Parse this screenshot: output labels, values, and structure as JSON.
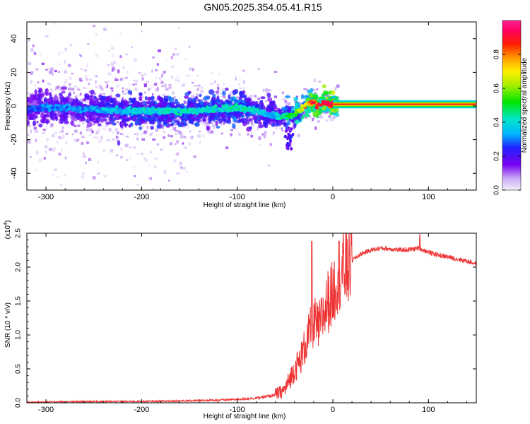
{
  "title": "GN05.2025.354.05.41.R15",
  "chart_data": [
    {
      "type": "heatmap",
      "xlabel": "Height of straight line (km)",
      "ylabel": "Frequency (Hz)",
      "xlim": [
        -320,
        150
      ],
      "ylim": [
        -50,
        50
      ],
      "xticks": [
        -300,
        -200,
        -100,
        0,
        100
      ],
      "xtick_labels": [
        "-300",
        "-200",
        "-100",
        "0",
        "100"
      ],
      "yticks": [
        -40,
        -20,
        0,
        20,
        40
      ],
      "ytick_labels": [
        "-40",
        "-20",
        "0",
        "20",
        "40"
      ],
      "colorbar": {
        "label": "Normalized spectral amplitude",
        "range": [
          0,
          1
        ],
        "ticks": [
          0.0,
          0.2,
          0.4,
          0.6,
          0.8
        ],
        "tick_labels": [
          "0.0",
          "0.2",
          "0.4",
          "0.6",
          "0.8"
        ]
      },
      "ridge": {
        "x": [
          -320,
          -300,
          -280,
          -260,
          -240,
          -220,
          -200,
          -180,
          -160,
          -140,
          -120,
          -100,
          -90,
          -80,
          -70,
          -60,
          -55,
          -50,
          -45,
          -40,
          -35,
          -30,
          -25,
          -20,
          -15,
          -10,
          -5,
          0,
          150
        ],
        "freq": [
          -2,
          -1,
          -1,
          -2,
          -2,
          -3,
          -3,
          -3,
          -3,
          -3,
          -2,
          -1,
          -2,
          -3,
          -5,
          -6,
          -7,
          -6,
          -6,
          -5,
          -3,
          0,
          2,
          2,
          0,
          2,
          1,
          1,
          1
        ],
        "amplitude": [
          0.25,
          0.3,
          0.3,
          0.3,
          0.35,
          0.35,
          0.4,
          0.4,
          0.4,
          0.4,
          0.4,
          0.45,
          0.4,
          0.4,
          0.35,
          0.35,
          0.4,
          0.45,
          0.5,
          0.55,
          0.6,
          0.75,
          0.8,
          0.85,
          0.85,
          0.9,
          0.9,
          0.9,
          0.9
        ]
      }
    },
    {
      "type": "line",
      "xlabel": "Height of straight line (km)",
      "ylabel": "SNR (10 * v/v)",
      "scale_label": "(x10",
      "scale_exponent": "4",
      "scale_close": ")",
      "xlim": [
        -320,
        150
      ],
      "ylim": [
        0,
        2.5
      ],
      "xticks": [
        -300,
        -200,
        -100,
        0,
        100
      ],
      "xtick_labels": [
        "-300",
        "-200",
        "-100",
        "0",
        "100"
      ],
      "yticks": [
        0,
        0.5,
        1,
        1.5,
        2,
        2.5
      ],
      "ytick_labels": [
        "0.0",
        "0.5",
        "1.0",
        "1.5",
        "2.0",
        "2.5"
      ],
      "series": [
        {
          "name": "SNR",
          "color": "#ee3333",
          "x": [
            -320,
            -250,
            -200,
            -150,
            -120,
            -100,
            -80,
            -65,
            -55,
            -50,
            -45,
            -40,
            -35,
            -30,
            -25,
            -20,
            -15,
            -10,
            -5,
            0,
            5,
            10,
            15,
            20,
            25,
            30,
            40,
            50,
            60,
            70,
            80,
            90,
            100,
            110,
            120,
            130,
            140,
            150
          ],
          "y": [
            0.01,
            0.02,
            0.02,
            0.03,
            0.04,
            0.05,
            0.07,
            0.1,
            0.15,
            0.2,
            0.35,
            0.5,
            0.6,
            0.8,
            1.0,
            1.2,
            1.1,
            1.3,
            1.5,
            1.6,
            1.9,
            1.95,
            2.0,
            2.1,
            2.15,
            2.2,
            2.25,
            2.28,
            2.27,
            2.25,
            2.26,
            2.28,
            2.22,
            2.18,
            2.15,
            2.12,
            2.09,
            2.05
          ],
          "peaks": [
            {
              "x": -22,
              "y": 2.38
            },
            {
              "x": 91,
              "y": 2.48
            }
          ]
        }
      ]
    }
  ]
}
